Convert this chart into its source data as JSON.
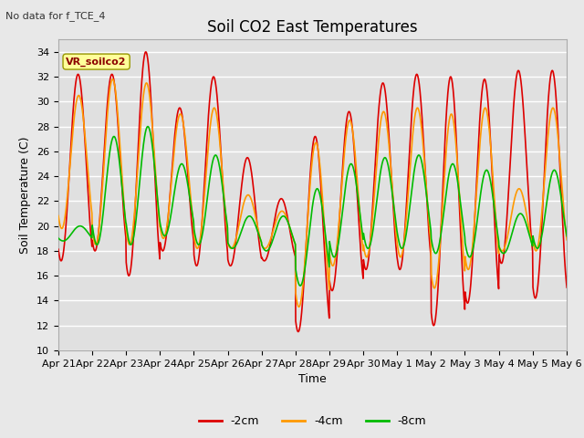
{
  "title": "Soil CO2 East Temperatures",
  "xlabel": "Time",
  "ylabel": "Soil Temperature (C)",
  "annotation": "No data for f_TCE_4",
  "legend_label": "VR_soilco2",
  "ylim": [
    10,
    35
  ],
  "yticks": [
    10,
    12,
    14,
    16,
    18,
    20,
    22,
    24,
    26,
    28,
    30,
    32,
    34
  ],
  "xtick_labels": [
    "Apr 21",
    "Apr 22",
    "Apr 23",
    "Apr 24",
    "Apr 25",
    "Apr 26",
    "Apr 27",
    "Apr 28",
    "Apr 29",
    "Apr 30",
    "May 1",
    "May 2",
    "May 3",
    "May 4",
    "May 5",
    "May 6"
  ],
  "colors": {
    "2cm": "#dd0000",
    "4cm": "#ff9900",
    "8cm": "#00bb00"
  },
  "line_widths": {
    "2cm": 1.2,
    "4cm": 1.2,
    "8cm": 1.2
  },
  "legend_entries": [
    {
      "label": "-2cm",
      "color": "#dd0000"
    },
    {
      "label": "-4cm",
      "color": "#ff9900"
    },
    {
      "label": "-8cm",
      "color": "#00bb00"
    }
  ],
  "fig_bg_color": "#e8e8e8",
  "plot_bg_color": "#e0e0e0",
  "grid_color": "#ffffff",
  "annotation_box_color": "#ffff99",
  "annotation_box_edge": "#999900",
  "title_fontsize": 12,
  "axis_label_fontsize": 9,
  "tick_fontsize": 8,
  "legend_fontsize": 9
}
